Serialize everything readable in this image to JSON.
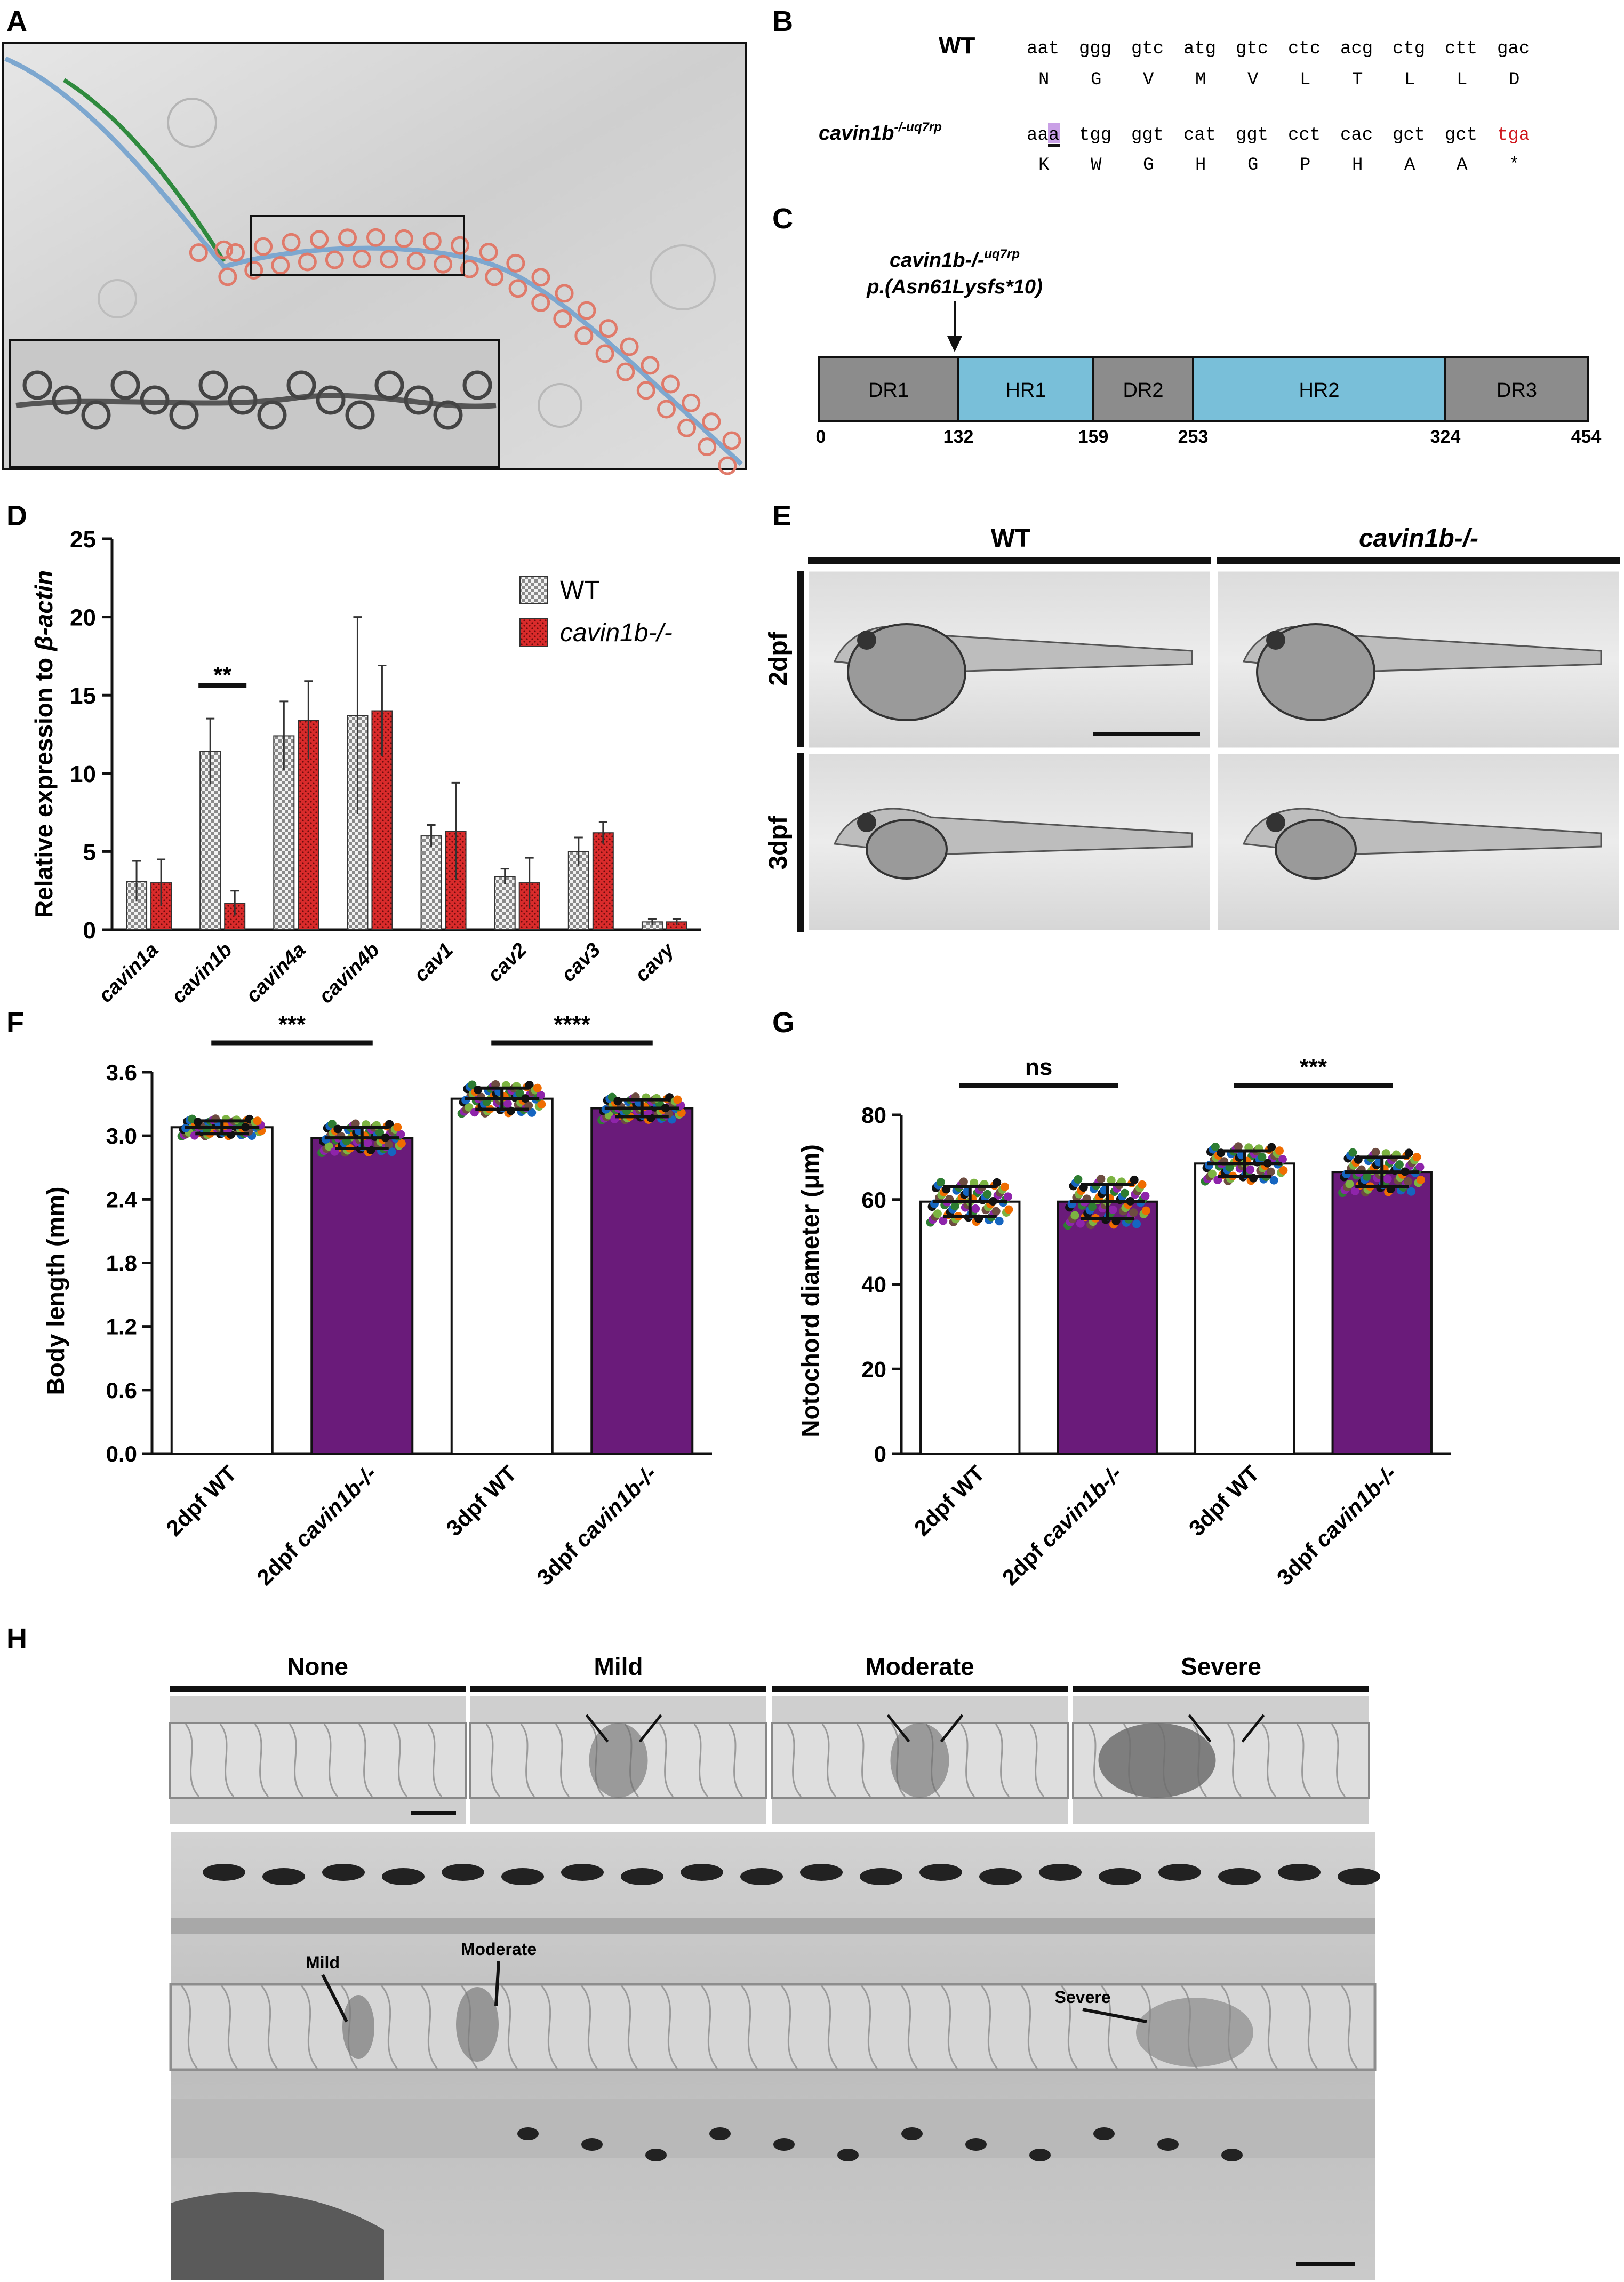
{
  "panel_labels": {
    "A": "A",
    "B": "B",
    "C": "C",
    "D": "D",
    "E": "E",
    "F": "F",
    "G": "G",
    "H": "H"
  },
  "panel_b": {
    "wt_label": "WT",
    "mut_label_main": "cavin1b",
    "mut_label_sup": "-/-uq7rp",
    "wt_codons": [
      "aat",
      "ggg",
      "gtc",
      "atg",
      "gtc",
      "ctc",
      "acg",
      "ctg",
      "ctt",
      "gac"
    ],
    "wt_aa": [
      "N",
      "G",
      "V",
      "M",
      "V",
      "L",
      "T",
      "L",
      "L",
      "D"
    ],
    "mut_codon_prefix": "aa",
    "mut_codon_highlight": "a",
    "mut_codons": [
      "tgg",
      "ggt",
      "cat",
      "ggt",
      "cct",
      "cac",
      "gct",
      "gct"
    ],
    "mut_stop": "tga",
    "mut_aa": [
      "K",
      "W",
      "G",
      "H",
      "G",
      "P",
      "H",
      "A",
      "A",
      "*"
    ],
    "highlight_color": "#c9a0e6",
    "stop_color": "#d0191f"
  },
  "panel_c": {
    "mutation_label_main": "cavin1b-/-",
    "mutation_label_sup": "uq7rp",
    "protein_change": "p.(Asn61Lysfs*10)",
    "domains": [
      {
        "name": "DR1",
        "start": 0,
        "end": 132,
        "kind": "DR"
      },
      {
        "name": "HR1",
        "start": 132,
        "end": 159,
        "kind": "HR"
      },
      {
        "name": "DR2",
        "start": 159,
        "end": 253,
        "kind": "DR"
      },
      {
        "name": "HR2",
        "start": 253,
        "end": 324,
        "kind": "HR"
      },
      {
        "name": "DR3",
        "start": 324,
        "end": 454,
        "kind": "DR"
      }
    ],
    "ticks": [
      "0",
      "132",
      "159",
      "253",
      "324",
      "454"
    ],
    "dr_color": "#8c8c8c",
    "hr_color": "#79bfd9"
  },
  "panel_e": {
    "col_labels": [
      "WT",
      "cavin1b-/-"
    ],
    "row_labels": [
      "2dpf",
      "3dpf"
    ]
  },
  "chart_data": [
    {
      "id": "D",
      "type": "bar",
      "ylabel": "Relative expression to β-actin",
      "ylim": [
        0,
        25
      ],
      "yticks": [
        "0",
        "5",
        "10",
        "15",
        "20",
        "25"
      ],
      "categories": [
        "cavin1a",
        "cavin1b",
        "cavin4a",
        "cavin4b",
        "cav1",
        "cav2",
        "cav3",
        "cavy"
      ],
      "series": [
        {
          "name": "WT",
          "color": "#d9d9d9",
          "values": [
            3.1,
            11.4,
            12.4,
            13.7,
            6.0,
            3.4,
            5.0,
            0.5
          ],
          "errors": [
            1.3,
            2.1,
            2.2,
            6.3,
            0.7,
            0.5,
            0.9,
            0.2
          ]
        },
        {
          "name": "cavin1b-/-",
          "color": "#d92b2b",
          "values": [
            3.0,
            1.7,
            13.4,
            14.0,
            6.3,
            3.0,
            6.2,
            0.5
          ],
          "errors": [
            1.5,
            0.8,
            2.5,
            2.9,
            3.1,
            1.6,
            0.7,
            0.2
          ]
        }
      ],
      "annotations": [
        {
          "text": "**",
          "category": "cavin1b"
        }
      ],
      "legend": "top-right"
    },
    {
      "id": "F",
      "type": "bar",
      "ylabel": "Body length (mm)",
      "ylim": [
        0,
        3.6
      ],
      "yticks": [
        "0.0",
        "0.6",
        "1.2",
        "1.8",
        "2.4",
        "3.0",
        "3.6"
      ],
      "categories": [
        "2dpf WT",
        "2dpf cavin1b-/-",
        "3dpf WT",
        "3dpf cavin1b-/-"
      ],
      "values": [
        3.08,
        2.98,
        3.35,
        3.26
      ],
      "errors": [
        0.06,
        0.1,
        0.1,
        0.08
      ],
      "colors": [
        "#ffffff",
        "#6a1b7a",
        "#ffffff",
        "#6a1b7a"
      ],
      "annotations": [
        {
          "text": "***",
          "between": [
            0,
            1
          ]
        },
        {
          "text": "****",
          "between": [
            2,
            3
          ]
        }
      ]
    },
    {
      "id": "G",
      "type": "bar",
      "ylabel": "Notochord diameter (μm)",
      "ylim": [
        0,
        80
      ],
      "yticks": [
        "0",
        "20",
        "40",
        "60",
        "80"
      ],
      "categories": [
        "2dpf WT",
        "2dpf cavin1b-/-",
        "3dpf WT",
        "3dpf cavin1b-/-"
      ],
      "values": [
        59.5,
        59.5,
        68.5,
        66.5
      ],
      "errors": [
        3.5,
        4.0,
        3.0,
        3.5
      ],
      "colors": [
        "#ffffff",
        "#6a1b7a",
        "#ffffff",
        "#6a1b7a"
      ],
      "annotations": [
        {
          "text": "ns",
          "between": [
            0,
            1
          ]
        },
        {
          "text": "***",
          "between": [
            2,
            3
          ]
        }
      ]
    }
  ],
  "panel_h": {
    "severity_labels": [
      "None",
      "Mild",
      "Moderate",
      "Severe"
    ],
    "overview_labels": [
      "Mild",
      "Moderate",
      "Severe"
    ]
  }
}
